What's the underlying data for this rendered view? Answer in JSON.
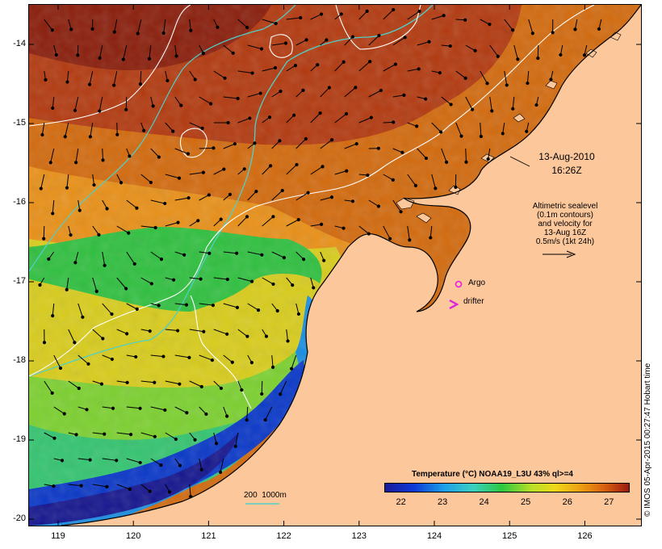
{
  "map": {
    "lon_ticks": [
      "119",
      "120",
      "121",
      "122",
      "123",
      "124",
      "125",
      "126"
    ],
    "lon_values": [
      119,
      120,
      121,
      122,
      123,
      124,
      125,
      126
    ],
    "lat_ticks": [
      "-14",
      "-15",
      "-16",
      "-17",
      "-18",
      "-19",
      "-20"
    ],
    "lat_values": [
      -14,
      -15,
      -16,
      -17,
      -18,
      -19,
      -20
    ],
    "date": "13-Aug-2010",
    "time": "16:26Z",
    "altimetry_note": [
      "Altimetric sealevel",
      "(0.1m contours)",
      "and velocity for",
      "13-Aug 16Z",
      "0.5m/s (1kt 24h)"
    ],
    "argo_label": "Argo",
    "drifter_label": "drifter",
    "bathy_label": "200  1000m",
    "credit": "© IMOS 05-Apr-2015 00:27:47 Hobart time",
    "colors": {
      "land": "#fbc79b",
      "argo": "#e020e0",
      "bathy_200": "#4fd0c8",
      "contour": "#ffffff"
    }
  },
  "legend": {
    "title": "Temperature (°C) NOAA19_L3U 43% ql>=4",
    "labels": [
      "22",
      "23",
      "24",
      "25",
      "26",
      "27"
    ],
    "values": [
      22,
      23,
      24,
      25,
      26,
      27
    ],
    "range": [
      21.6,
      27.5
    ]
  }
}
